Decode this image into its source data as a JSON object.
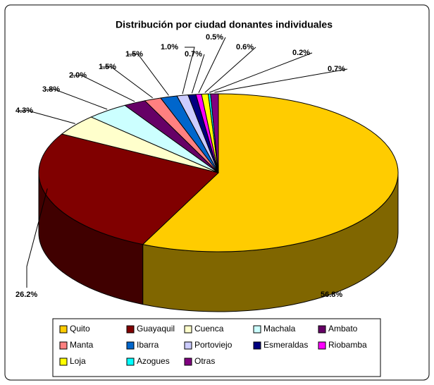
{
  "chart_data": {
    "type": "pie3d",
    "title": "Distribución por ciudad donantes individuales",
    "categories": [
      "Quito",
      "Guayaquil",
      "Cuenca",
      "Machala",
      "Ambato",
      "Manta",
      "Ibarra",
      "Portoviejo",
      "Esmeraldas",
      "Riobamba",
      "Loja",
      "Azogues",
      "Otras"
    ],
    "values": [
      56.8,
      26.2,
      4.3,
      3.8,
      2.0,
      1.5,
      1.5,
      1.0,
      0.7,
      0.5,
      0.6,
      0.2,
      0.7
    ],
    "value_labels": [
      "56.8%",
      "26.2%",
      "4.3%",
      "3.8%",
      "2.0%",
      "1.5%",
      "1.5%",
      "1.0%",
      "0.7%",
      "0.5%",
      "0.6%",
      "0.2%",
      "0.7%"
    ],
    "colors": [
      "#ffcc00",
      "#800000",
      "#ffffcc",
      "#ccffff",
      "#660066",
      "#ff8080",
      "#0066cc",
      "#ccccff",
      "#000080",
      "#ff00ff",
      "#ffff00",
      "#00ffff",
      "#800080"
    ],
    "legend": "bottom"
  }
}
